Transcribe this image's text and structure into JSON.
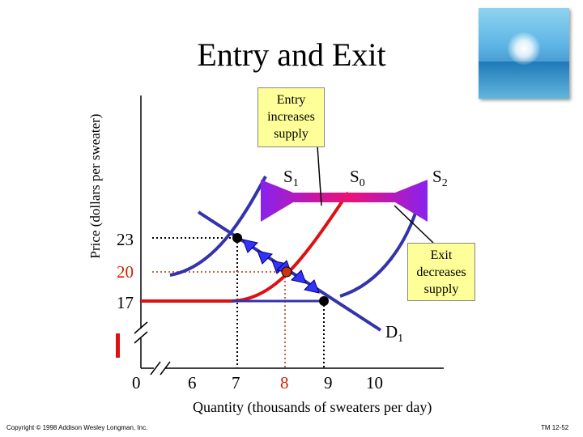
{
  "title": "Entry and Exit",
  "axes": {
    "ylabel": "Price (dollars per sweater)",
    "xlabel": "Quantity (thousands of sweaters per day)"
  },
  "x_ticks": [
    {
      "label": "0",
      "color": "#000000"
    },
    {
      "label": "6",
      "color": "#000000"
    },
    {
      "label": "7",
      "color": "#000000"
    },
    {
      "label": "8",
      "color": "#cc2200"
    },
    {
      "label": "9",
      "color": "#000000"
    },
    {
      "label": "10",
      "color": "#000000"
    }
  ],
  "y_ticks": [
    {
      "label": "23",
      "color": "#000000"
    },
    {
      "label": "20",
      "color": "#cc2200"
    },
    {
      "label": "17",
      "color": "#000000"
    }
  ],
  "curves": {
    "s1": {
      "label": "S",
      "sub": "1"
    },
    "s0": {
      "label": "S",
      "sub": "0"
    },
    "s2": {
      "label": "S",
      "sub": "2"
    },
    "d1": {
      "label": "D",
      "sub": "1"
    }
  },
  "callouts": {
    "entry": "Entry increases supply",
    "exit": "Exit decreases supply"
  },
  "colors": {
    "supply_blue": "#3333aa",
    "supply_red": "#dd1111",
    "arrow_pink": "#ee1177",
    "arrow_violet": "#8822ee",
    "callout_bg": "#ffff99"
  },
  "footer": {
    "copyright": "Copyright © 1998 Addison Wesley Longman, Inc.",
    "slide_id": "TM 12-52"
  }
}
